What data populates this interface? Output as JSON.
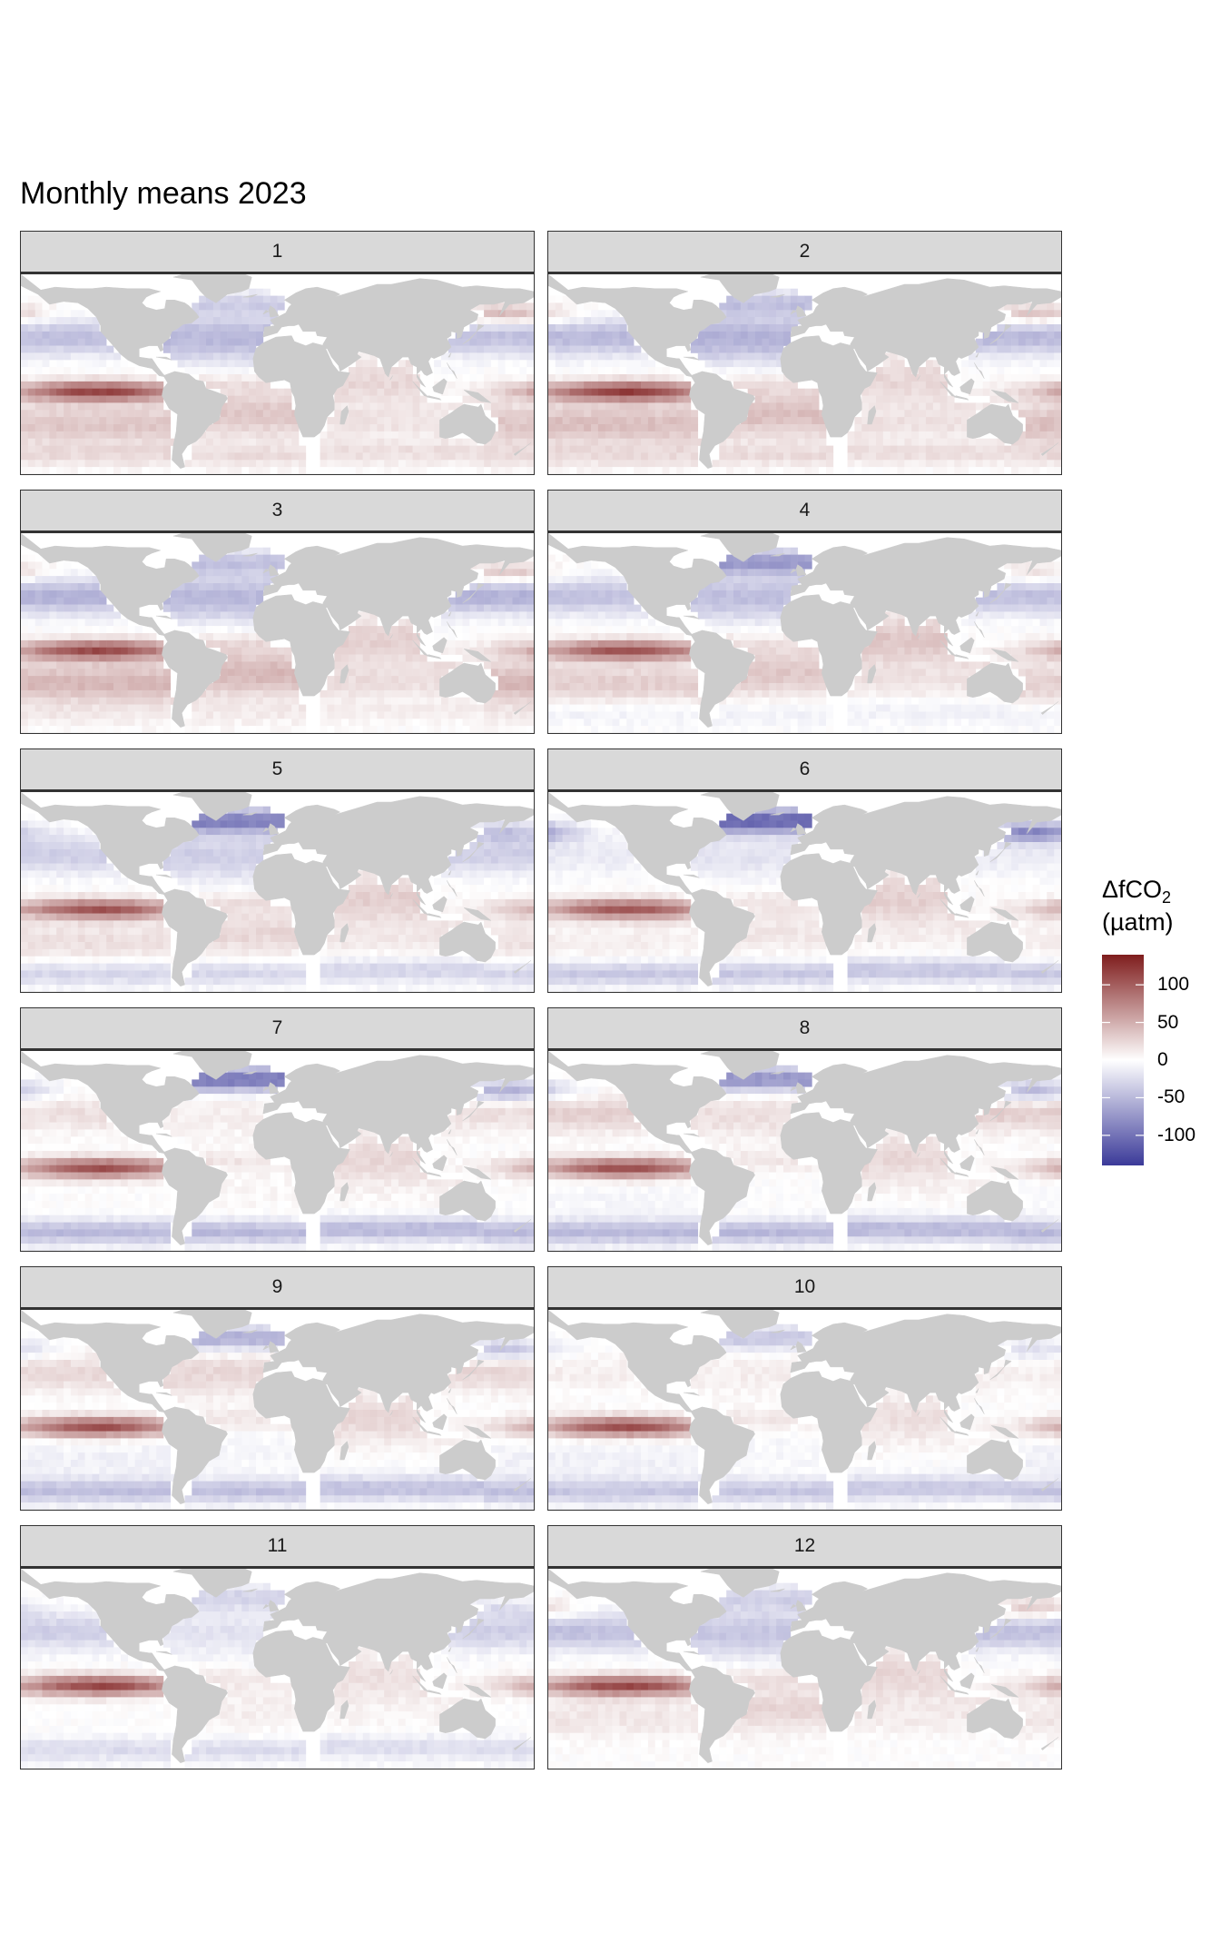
{
  "chart_data": {
    "type": "heatmap",
    "title": "Monthly means 2023",
    "variable": "ΔfCO",
    "variable_subscript": "2",
    "unit": "(µatm)",
    "colorbar": {
      "min": -140,
      "max": 140,
      "ticks": [
        100,
        50,
        0,
        -50,
        -100
      ],
      "tick_labels": [
        "100",
        "50",
        "0",
        "-50",
        "-100"
      ],
      "colors": {
        "high": "#7f1d1d",
        "mid": "#ffffff",
        "low": "#3b3a99"
      }
    },
    "land_color": "#cccccc",
    "facets": [
      {
        "label": "1",
        "month": 1,
        "regimes": {
          "np_sub": -45,
          "np_hi": 50,
          "eq_pac": 115,
          "sh_pac": 35,
          "so": 20,
          "n_atl": -50,
          "subarc_atl": -30,
          "s_atl": 35,
          "ind": 25
        }
      },
      {
        "label": "2",
        "month": 2,
        "regimes": {
          "np_sub": -50,
          "np_hi": 45,
          "eq_pac": 120,
          "sh_pac": 40,
          "so": 20,
          "n_atl": -55,
          "subarc_atl": -40,
          "s_atl": 40,
          "ind": 25
        }
      },
      {
        "label": "3",
        "month": 3,
        "regimes": {
          "np_sub": -55,
          "np_hi": 45,
          "eq_pac": 110,
          "sh_pac": 45,
          "so": 10,
          "n_atl": -50,
          "subarc_atl": -40,
          "s_atl": 45,
          "ind": 30
        }
      },
      {
        "label": "4",
        "month": 4,
        "regimes": {
          "np_sub": -45,
          "np_hi": 25,
          "eq_pac": 105,
          "sh_pac": 30,
          "so": -10,
          "n_atl": -45,
          "subarc_atl": -70,
          "s_atl": 35,
          "ind": 35
        }
      },
      {
        "label": "5",
        "month": 5,
        "regimes": {
          "np_sub": -35,
          "np_hi": -40,
          "eq_pac": 105,
          "sh_pac": 20,
          "so": -30,
          "n_atl": -35,
          "subarc_atl": -90,
          "s_atl": 25,
          "ind": 30
        }
      },
      {
        "label": "6",
        "month": 6,
        "regimes": {
          "np_sub": -15,
          "np_hi": -85,
          "eq_pac": 105,
          "sh_pac": 10,
          "so": -40,
          "n_atl": -20,
          "subarc_atl": -110,
          "s_atl": 15,
          "ind": 30
        }
      },
      {
        "label": "7",
        "month": 7,
        "regimes": {
          "np_sub": 20,
          "np_hi": -60,
          "eq_pac": 110,
          "sh_pac": 0,
          "so": -50,
          "n_atl": 10,
          "subarc_atl": -100,
          "s_atl": 5,
          "ind": 25
        }
      },
      {
        "label": "8",
        "month": 8,
        "regimes": {
          "np_sub": 30,
          "np_hi": -55,
          "eq_pac": 110,
          "sh_pac": -5,
          "so": -50,
          "n_atl": 20,
          "subarc_atl": -80,
          "s_atl": 0,
          "ind": 25
        }
      },
      {
        "label": "9",
        "month": 9,
        "regimes": {
          "np_sub": 25,
          "np_hi": -45,
          "eq_pac": 110,
          "sh_pac": -10,
          "so": -45,
          "n_atl": 25,
          "subarc_atl": -60,
          "s_atl": -5,
          "ind": 25
        }
      },
      {
        "label": "10",
        "month": 10,
        "regimes": {
          "np_sub": 10,
          "np_hi": -25,
          "eq_pac": 110,
          "sh_pac": -10,
          "so": -40,
          "n_atl": 10,
          "subarc_atl": -40,
          "s_atl": -5,
          "ind": 20
        }
      },
      {
        "label": "11",
        "month": 11,
        "regimes": {
          "np_sub": -35,
          "np_hi": -20,
          "eq_pac": 115,
          "sh_pac": 0,
          "so": -25,
          "n_atl": -20,
          "subarc_atl": -30,
          "s_atl": 10,
          "ind": 20
        }
      },
      {
        "label": "12",
        "month": 12,
        "regimes": {
          "np_sub": -45,
          "np_hi": 40,
          "eq_pac": 115,
          "sh_pac": 15,
          "so": 0,
          "n_atl": -40,
          "subarc_atl": -30,
          "s_atl": 25,
          "ind": 25
        }
      }
    ]
  }
}
